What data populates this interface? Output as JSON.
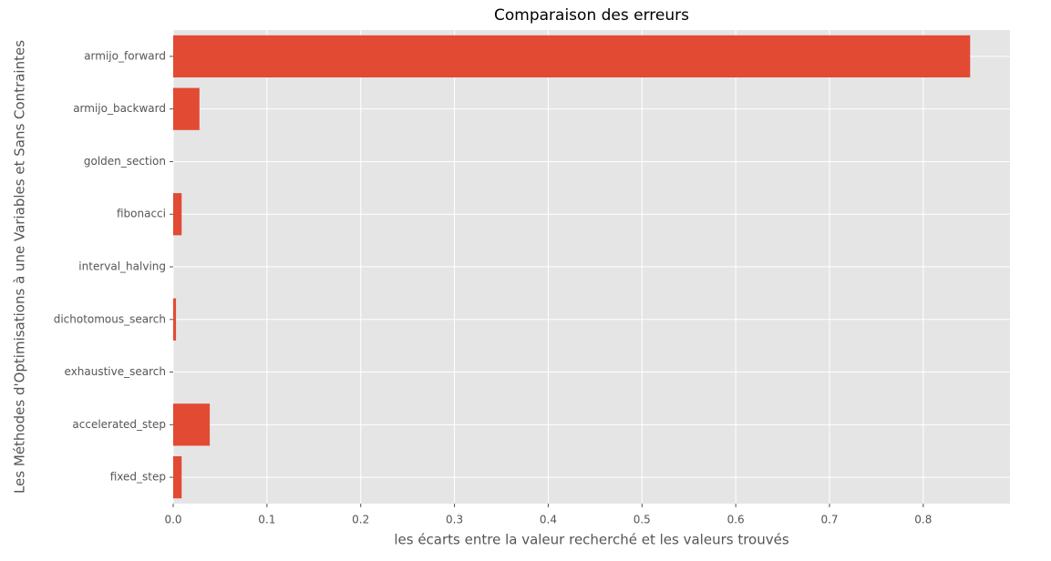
{
  "chart_data": {
    "type": "barh",
    "title": "Comparaison des erreurs",
    "xlabel": "les écarts entre la valeur recherché et les valeurs trouvés",
    "ylabel": "Les Méthodes d'Optimisations à une Variables et Sans Contraintes",
    "categories": [
      "armijo_forward",
      "armijo_backward",
      "golden_section",
      "fibonacci",
      "interval_halving",
      "dichotomous_search",
      "exhaustive_search",
      "accelerated_step",
      "fixed_step"
    ],
    "values": [
      0.85,
      0.028,
      0,
      0.009,
      0,
      0.003,
      0,
      0.039,
      0.009
    ],
    "color": "#e24a33",
    "xlim": [
      0,
      0.8925
    ],
    "xticks": [
      {
        "value": 0,
        "label": "0.0"
      },
      0.1,
      0.2,
      0.3,
      0.4,
      0.5,
      0.6,
      0.7,
      0.8
    ],
    "grid": true
  }
}
